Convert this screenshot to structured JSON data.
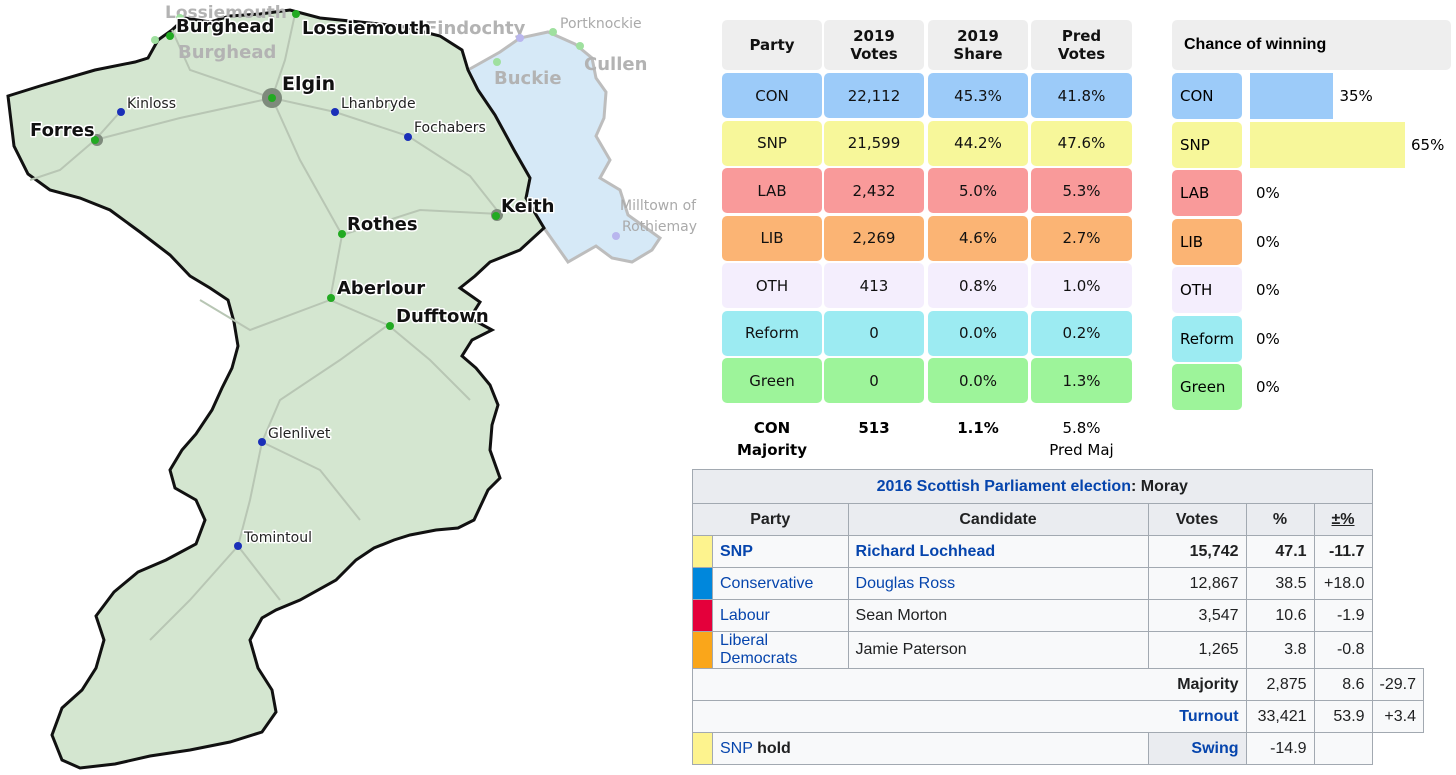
{
  "map": {
    "towns_major": [
      {
        "name": "Elgin"
      },
      {
        "name": "Forres"
      },
      {
        "name": "Keith"
      },
      {
        "name": "Rothes"
      },
      {
        "name": "Aberlour"
      },
      {
        "name": "Dufftown"
      },
      {
        "name": "Lossiemouth"
      },
      {
        "name": "Burghead"
      }
    ],
    "towns_minor": [
      {
        "name": "Kinloss"
      },
      {
        "name": "Lhanbryde"
      },
      {
        "name": "Fochabers"
      },
      {
        "name": "Glenlivet"
      },
      {
        "name": "Tomintoul"
      }
    ],
    "faded_labels": [
      {
        "name": "Lossiemouth"
      },
      {
        "name": "Burghead"
      },
      {
        "name": "Findochty"
      },
      {
        "name": "Portknockie"
      },
      {
        "name": "Cullen"
      },
      {
        "name": "Buckie"
      },
      {
        "name": "Milltown of"
      },
      {
        "name": "Rothiemay"
      }
    ],
    "colors": {
      "region_fill": "#d4e6d0",
      "neighbour_fill": "#d6e9f7",
      "border": "#111111",
      "town_major": "#22aa22",
      "town_minor": "#1a2fb8"
    }
  },
  "prediction": {
    "headers": [
      "Party",
      "2019 Votes",
      "2019 Share",
      "Pred Votes"
    ],
    "header_lines": [
      [
        "Party"
      ],
      [
        "2019",
        "Votes"
      ],
      [
        "2019",
        "Share"
      ],
      [
        "Pred",
        "Votes"
      ]
    ],
    "rows": [
      {
        "party": "CON",
        "votes": "22,112",
        "share": "45.3%",
        "pred": "41.8%",
        "color": "#9ccbf9"
      },
      {
        "party": "SNP",
        "votes": "21,599",
        "share": "44.2%",
        "pred": "47.6%",
        "color": "#f7f79a"
      },
      {
        "party": "LAB",
        "votes": "2,432",
        "share": "5.0%",
        "pred": "5.3%",
        "color": "#f99a9a"
      },
      {
        "party": "LIB",
        "votes": "2,269",
        "share": "4.6%",
        "pred": "2.7%",
        "color": "#fbb474"
      },
      {
        "party": "OTH",
        "votes": "413",
        "share": "0.8%",
        "pred": "1.0%",
        "color": "#f4eefd"
      },
      {
        "party": "Reform",
        "votes": "0",
        "share": "0.0%",
        "pred": "0.2%",
        "color": "#9cebf2"
      },
      {
        "party": "Green",
        "votes": "0",
        "share": "0.0%",
        "pred": "1.3%",
        "color": "#9df49a"
      }
    ],
    "footer": {
      "party": "CON",
      "label": "Majority",
      "votes": "513",
      "share": "1.1%",
      "pred": "5.8%",
      "pred_label": "Pred Maj"
    }
  },
  "chance": {
    "title": "Chance of winning",
    "rows": [
      {
        "party": "CON",
        "value": 35,
        "label": "35%",
        "color": "#9ccbf9"
      },
      {
        "party": "SNP",
        "value": 65,
        "label": "65%",
        "color": "#f7f79a"
      },
      {
        "party": "LAB",
        "value": 0,
        "label": "0%",
        "color": "#f99a9a"
      },
      {
        "party": "LIB",
        "value": 0,
        "label": "0%",
        "color": "#fbb474"
      },
      {
        "party": "OTH",
        "value": 0,
        "label": "0%",
        "color": "#f4eefd"
      },
      {
        "party": "Reform",
        "value": 0,
        "label": "0%",
        "color": "#9cebf2"
      },
      {
        "party": "Green",
        "value": 0,
        "label": "0%",
        "color": "#9df49a"
      }
    ]
  },
  "election": {
    "title_year": "2016 Scottish Parliament election",
    "title_place": ": Moray",
    "headers": [
      "Party",
      "Candidate",
      "Votes",
      "%",
      "±%"
    ],
    "rows": [
      {
        "party": "SNP",
        "candidate": "Richard Lochhead",
        "votes": "15,742",
        "pct": "47.1",
        "change": "-11.7",
        "color": "#fdf38e"
      },
      {
        "party": "Conservative",
        "candidate": "Douglas Ross",
        "votes": "12,867",
        "pct": "38.5",
        "change": "+18.0",
        "color": "#0087dc"
      },
      {
        "party": "Labour",
        "candidate": "Sean Morton",
        "votes": "3,547",
        "pct": "10.6",
        "change": "-1.9",
        "color": "#e4003b"
      },
      {
        "party": "Liberal Democrats",
        "candidate": "Jamie Paterson",
        "votes": "1,265",
        "pct": "3.8",
        "change": "-0.8",
        "color": "#faa61a"
      }
    ],
    "majority": {
      "label": "Majority",
      "votes": "2,875",
      "pct": "8.6",
      "change": "-29.7"
    },
    "turnout": {
      "label": "Turnout",
      "votes": "33,421",
      "pct": "53.9",
      "change": "+3.4"
    },
    "hold": {
      "party": "SNP",
      "word": "hold",
      "swing_label": "Swing",
      "swing": "-14.9",
      "color": "#fdf38e"
    }
  }
}
